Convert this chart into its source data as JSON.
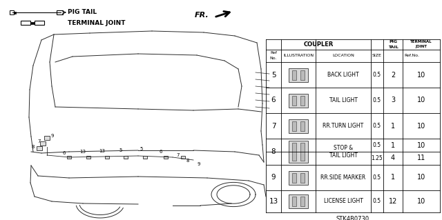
{
  "bg_color": "#ffffff",
  "part_number": "STK4B0730",
  "legend_pigtail": "PIG TAIL",
  "legend_terminal": "TERMINAL JOINT",
  "table_line_color": "#000000",
  "rows": [
    {
      "ref": "5",
      "loc": "BACK LIGHT",
      "size": "0.5",
      "pig": "2",
      "term": "10",
      "split": false
    },
    {
      "ref": "6",
      "loc": "TAIL LIGHT",
      "size": "0.5",
      "pig": "3",
      "term": "10",
      "split": false
    },
    {
      "ref": "7",
      "loc": "RR.TURN LIGHT",
      "size": "0.5",
      "pig": "1",
      "term": "10",
      "split": false
    },
    {
      "ref": "8",
      "loc": "STOP &\nTAIL LIGHT",
      "size_a": "0.5",
      "pig_a": "1",
      "term_a": "10",
      "size_b": "1.25",
      "pig_b": "4",
      "term_b": "11",
      "split": true
    },
    {
      "ref": "9",
      "loc": "RR.SIDE MARKER",
      "size": "0.5",
      "pig": "1",
      "term": "10",
      "split": false
    },
    {
      "ref": "13",
      "loc": "LICENSE LIGHT",
      "size": "0.5",
      "pig": "12",
      "term": "10",
      "split": false
    }
  ]
}
